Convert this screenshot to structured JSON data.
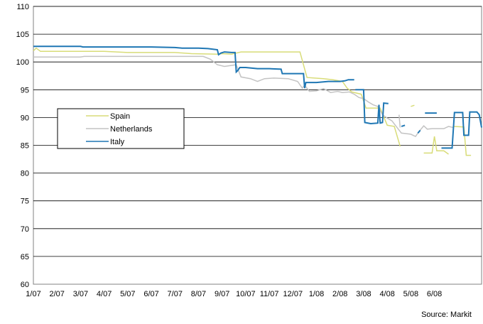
{
  "chart_data": {
    "type": "line",
    "ylim": [
      60,
      110
    ],
    "yticks": [
      60,
      65,
      70,
      75,
      80,
      85,
      90,
      95,
      100,
      105,
      110
    ],
    "grid": true,
    "legend_position": "middle-left",
    "x_tick_labels": [
      "1/07",
      "2/07",
      "3/07",
      "4/07",
      "5/07",
      "6/07",
      "7/07",
      "8/07",
      "9/07",
      "10/07",
      "11/07",
      "12/07",
      "1/08",
      "2/08",
      "3/08",
      "4/08",
      "5/08",
      "6/08"
    ],
    "x_range": [
      0,
      19
    ],
    "series": [
      {
        "name": "Spain",
        "color": "#d8dc78",
        "segments": [
          [
            [
              0.0,
              102.0
            ],
            [
              0.12,
              102.5
            ],
            [
              0.3,
              101.9
            ],
            [
              3.0,
              101.9
            ],
            [
              4.0,
              101.7
            ],
            [
              6.0,
              101.7
            ],
            [
              6.7,
              101.5
            ],
            [
              7.8,
              101.4
            ],
            [
              8.0,
              101.5
            ],
            [
              8.4,
              101.4
            ],
            [
              8.6,
              101.6
            ],
            [
              8.8,
              101.8
            ],
            [
              11.0,
              101.8
            ],
            [
              11.3,
              101.8
            ],
            [
              11.6,
              97.2
            ],
            [
              12.3,
              97.0
            ],
            [
              12.7,
              96.8
            ],
            [
              13.1,
              96.5
            ],
            [
              13.3,
              95.3
            ],
            [
              13.5,
              94.6
            ],
            [
              13.9,
              94.2
            ],
            [
              14.1,
              91.7
            ],
            [
              14.7,
              91.7
            ],
            [
              15.0,
              88.6
            ],
            [
              15.3,
              88.4
            ],
            [
              15.55,
              84.8
            ]
          ],
          [
            [
              16.0,
              92.0
            ],
            [
              16.15,
              92.2
            ]
          ],
          [
            [
              16.55,
              83.6
            ],
            [
              16.9,
              83.6
            ],
            [
              17.0,
              86.6
            ],
            [
              17.1,
              84.0
            ],
            [
              17.4,
              84.0
            ],
            [
              17.6,
              83.4
            ]
          ],
          [
            [
              17.8,
              88.4
            ],
            [
              18.25,
              88.3
            ],
            [
              18.35,
              83.2
            ],
            [
              18.55,
              83.2
            ]
          ]
        ]
      },
      {
        "name": "Netherlands",
        "color": "#c3c3c3",
        "segments": [
          [
            [
              0.0,
              100.9
            ],
            [
              2.0,
              100.9
            ],
            [
              2.15,
              101.0
            ],
            [
              5.0,
              101.0
            ],
            [
              7.2,
              101.0
            ],
            [
              7.5,
              100.5
            ],
            [
              7.8,
              99.5
            ],
            [
              8.1,
              99.2
            ],
            [
              8.6,
              99.5
            ],
            [
              8.8,
              97.3
            ],
            [
              9.2,
              97.0
            ],
            [
              9.5,
              96.5
            ],
            [
              9.8,
              97.0
            ],
            [
              10.2,
              97.1
            ],
            [
              10.8,
              97.0
            ],
            [
              11.2,
              96.5
            ],
            [
              11.4,
              95.3
            ],
            [
              11.5,
              95.8
            ],
            [
              11.7,
              94.7
            ],
            [
              12.0,
              94.8
            ],
            [
              12.3,
              95.2
            ],
            [
              12.6,
              94.5
            ],
            [
              12.9,
              94.7
            ],
            [
              13.1,
              94.5
            ],
            [
              13.4,
              94.6
            ],
            [
              13.6,
              94.2
            ],
            [
              13.8,
              93.6
            ],
            [
              14.0,
              93.4
            ],
            [
              14.2,
              92.8
            ],
            [
              14.4,
              92.3
            ],
            [
              14.6,
              92.0
            ],
            [
              14.8,
              90.5
            ],
            [
              15.0,
              89.9
            ],
            [
              15.2,
              89.4
            ],
            [
              15.4,
              88.3
            ],
            [
              15.6,
              87.2
            ],
            [
              16.0,
              87.0
            ],
            [
              16.2,
              86.6
            ],
            [
              16.35,
              87.5
            ],
            [
              16.55,
              88.5
            ],
            [
              16.7,
              87.9
            ],
            [
              16.9,
              88.0
            ],
            [
              17.4,
              88.0
            ],
            [
              17.6,
              88.4
            ],
            [
              17.8,
              88.2
            ]
          ],
          [
            [
              15.5,
              90.5
            ],
            [
              15.55,
              88.2
            ]
          ]
        ]
      },
      {
        "name": "Italy",
        "color": "#1f77b4",
        "segments": [
          [
            [
              0.0,
              102.8
            ],
            [
              2.0,
              102.8
            ],
            [
              2.1,
              102.7
            ],
            [
              4.0,
              102.7
            ],
            [
              5.0,
              102.7
            ],
            [
              6.0,
              102.6
            ],
            [
              6.3,
              102.5
            ],
            [
              7.0,
              102.5
            ],
            [
              7.4,
              102.4
            ],
            [
              7.8,
              102.2
            ],
            [
              7.85,
              101.3
            ],
            [
              7.95,
              101.6
            ],
            [
              8.1,
              101.8
            ],
            [
              8.4,
              101.7
            ],
            [
              8.55,
              101.7
            ],
            [
              8.6,
              98.2
            ],
            [
              8.65,
              98.4
            ],
            [
              8.75,
              99.0
            ],
            [
              9.0,
              99.0
            ],
            [
              9.5,
              98.8
            ],
            [
              10.0,
              98.8
            ],
            [
              10.5,
              98.7
            ],
            [
              10.55,
              97.9
            ],
            [
              11.0,
              97.9
            ],
            [
              11.45,
              97.9
            ],
            [
              11.5,
              95.3
            ],
            [
              11.55,
              96.3
            ],
            [
              12.0,
              96.3
            ],
            [
              12.5,
              96.5
            ],
            [
              13.0,
              96.5
            ],
            [
              13.2,
              96.6
            ],
            [
              13.35,
              96.8
            ],
            [
              13.6,
              96.8
            ]
          ],
          [
            [
              13.65,
              95.0
            ],
            [
              14.0,
              95.0
            ],
            [
              14.05,
              89.1
            ],
            [
              14.3,
              88.9
            ],
            [
              14.6,
              89.0
            ],
            [
              14.65,
              92.3
            ],
            [
              14.7,
              89.0
            ],
            [
              14.8,
              89.1
            ],
            [
              14.85,
              92.6
            ],
            [
              15.05,
              92.5
            ]
          ],
          [
            [
              15.6,
              88.4
            ],
            [
              15.75,
              88.6
            ]
          ],
          [
            [
              16.3,
              87.2
            ],
            [
              16.4,
              87.7
            ]
          ],
          [
            [
              16.6,
              90.8
            ],
            [
              17.1,
              90.8
            ]
          ],
          [
            [
              17.3,
              84.5
            ],
            [
              17.75,
              84.5
            ],
            [
              17.85,
              90.9
            ],
            [
              18.2,
              90.9
            ],
            [
              18.25,
              86.8
            ],
            [
              18.45,
              86.8
            ],
            [
              18.5,
              91.0
            ],
            [
              18.8,
              91.0
            ],
            [
              18.9,
              90.5
            ],
            [
              19.0,
              88.2
            ]
          ]
        ]
      }
    ]
  },
  "source_text": "Source: Markit"
}
